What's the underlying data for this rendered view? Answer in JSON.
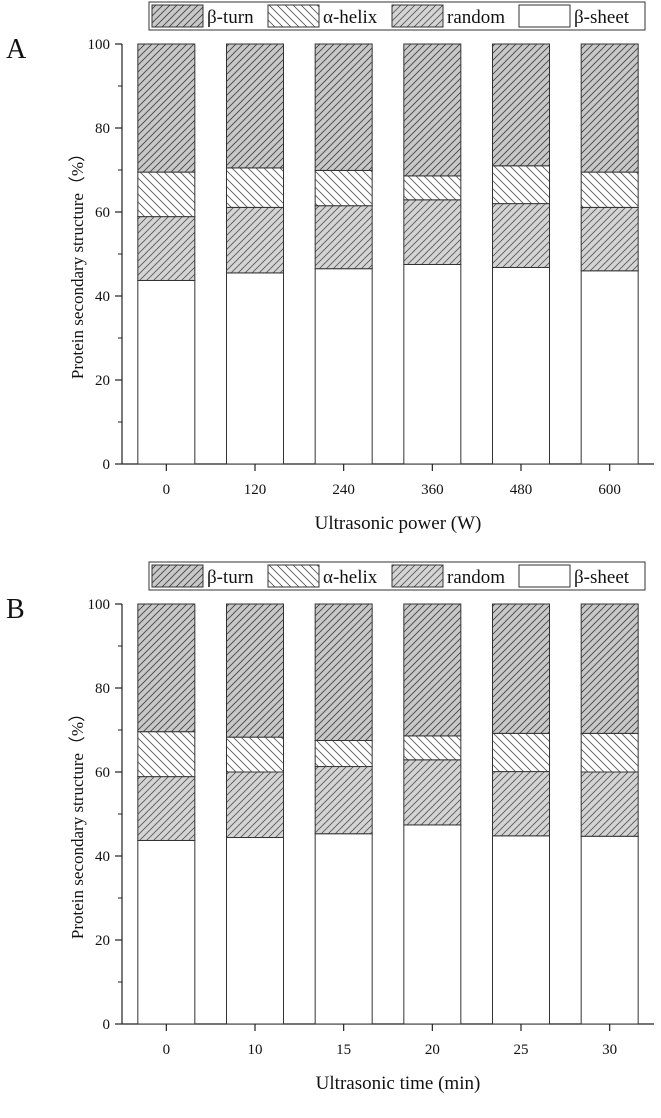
{
  "legend": [
    "β-turn",
    "α-helix",
    "random",
    "β-sheet"
  ],
  "chart_data": [
    {
      "type": "bar",
      "stacked": true,
      "panel_label": "A",
      "xlabel": "Ultrasonic power (W)",
      "ylabel": "Protein secondary structure（%）",
      "categories": [
        "0",
        "120",
        "240",
        "360",
        "480",
        "600"
      ],
      "ylim": [
        0,
        100
      ],
      "yticks": [
        0,
        20,
        40,
        60,
        80,
        100
      ],
      "legend_position": "top",
      "grid": false,
      "series": [
        {
          "name": "β-sheet",
          "values": [
            43.7,
            45.5,
            46.5,
            47.5,
            46.8,
            46.0
          ]
        },
        {
          "name": "random",
          "values": [
            15.2,
            15.6,
            15.0,
            15.4,
            15.2,
            15.1
          ]
        },
        {
          "name": "α-helix",
          "values": [
            10.6,
            9.4,
            8.4,
            5.7,
            9.0,
            8.4
          ]
        },
        {
          "name": "β-turn",
          "values": [
            30.5,
            29.5,
            30.1,
            31.4,
            29.0,
            30.5
          ]
        }
      ]
    },
    {
      "type": "bar",
      "stacked": true,
      "panel_label": "B",
      "xlabel": "Ultrasonic time (min)",
      "ylabel": "Protein secondary structure（%）",
      "categories": [
        "0",
        "10",
        "15",
        "20",
        "25",
        "30"
      ],
      "ylim": [
        0,
        100
      ],
      "yticks": [
        0,
        20,
        40,
        60,
        80,
        100
      ],
      "legend_position": "top",
      "grid": false,
      "series": [
        {
          "name": "β-sheet",
          "values": [
            43.7,
            44.4,
            45.3,
            47.4,
            44.8,
            44.7
          ]
        },
        {
          "name": "random",
          "values": [
            15.2,
            15.6,
            16.0,
            15.5,
            15.3,
            15.3
          ]
        },
        {
          "name": "α-helix",
          "values": [
            10.7,
            8.3,
            6.2,
            5.7,
            9.1,
            9.2
          ]
        },
        {
          "name": "β-turn",
          "values": [
            30.4,
            31.7,
            32.5,
            31.4,
            30.8,
            30.8
          ]
        }
      ]
    }
  ]
}
